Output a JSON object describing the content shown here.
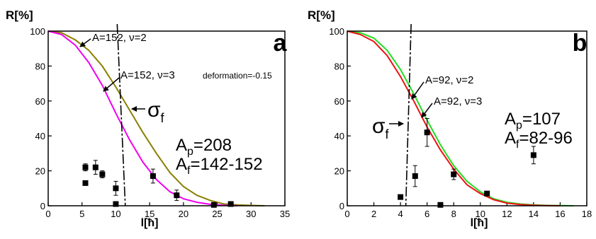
{
  "chart_data": [
    {
      "type": "line",
      "panel_label": "a",
      "ylabel": "R[%]",
      "xlabel": "l[ħ]",
      "xlim": [
        0,
        35
      ],
      "ylim": [
        0,
        100
      ],
      "xticks": [
        0,
        5,
        10,
        15,
        20,
        25,
        30,
        35
      ],
      "yticks": [
        0,
        20,
        40,
        60,
        80,
        100
      ],
      "series": [
        {
          "name": "A=152, ν=2",
          "color": "#8a8000",
          "x": [
            0,
            2,
            4,
            6,
            8,
            10,
            12,
            14,
            16,
            18,
            20,
            22,
            24,
            26,
            28,
            30,
            32
          ],
          "y": [
            100,
            99,
            95,
            89,
            80,
            68,
            55,
            42,
            30,
            19,
            11,
            6,
            3,
            1,
            0.5,
            0.2,
            0
          ]
        },
        {
          "name": "A=152, ν=3",
          "color": "#ee00ee",
          "note": "deformation=-0.15",
          "x": [
            0,
            2,
            4,
            6,
            8,
            10,
            12,
            14,
            16,
            18,
            20,
            22,
            24,
            26,
            28
          ],
          "y": [
            100,
            98,
            92,
            82,
            69,
            53,
            38,
            25,
            15,
            8,
            4,
            2,
            0.8,
            0.3,
            0
          ]
        }
      ],
      "points": [
        {
          "x": 5.5,
          "y": 22,
          "err": 2
        },
        {
          "x": 5.5,
          "y": 13,
          "err": 1
        },
        {
          "x": 7,
          "y": 22,
          "err": 4
        },
        {
          "x": 8,
          "y": 18,
          "err": 2
        },
        {
          "x": 10,
          "y": 10,
          "err": 4
        },
        {
          "x": 10,
          "y": 1,
          "err": 0
        },
        {
          "x": 15.5,
          "y": 17,
          "err": 4
        },
        {
          "x": 19,
          "y": 6,
          "err": 3
        },
        {
          "x": 24.5,
          "y": 0.5,
          "err": 0
        },
        {
          "x": 27,
          "y": 1,
          "err": 1
        }
      ],
      "sigma_line": {
        "x_top": 10.2,
        "x_bottom": 11.4
      },
      "sigma_label": {
        "main": "σ",
        "sub": "f"
      },
      "annotations": {
        "a1": "A=152, ν=2",
        "a2": "A=152, ν=3",
        "a2_note": "deformation=-0.15",
        "ap": "A",
        "ap_sub": "p",
        "ap_val": "=208",
        "af": "A",
        "af_sub": "f",
        "af_val": "=142-152"
      }
    },
    {
      "type": "line",
      "panel_label": "b",
      "ylabel": "R[%]",
      "xlabel": "l[ħ]",
      "xlim": [
        0,
        18
      ],
      "ylim": [
        0,
        100
      ],
      "xticks": [
        0,
        2,
        4,
        6,
        8,
        10,
        12,
        14,
        16,
        18
      ],
      "yticks": [
        0,
        20,
        40,
        60,
        80,
        100
      ],
      "series": [
        {
          "name": "A=92, ν=2",
          "color": "#22dd22",
          "x": [
            0,
            1,
            2,
            3,
            4,
            5,
            6,
            7,
            8,
            9,
            10,
            11,
            12,
            13,
            14,
            15,
            16,
            17
          ],
          "y": [
            100,
            99,
            96,
            89,
            78,
            64,
            49,
            35,
            23,
            14,
            8,
            4,
            2,
            1,
            0.5,
            0.2,
            0.1,
            0
          ]
        },
        {
          "name": "A=92, ν=3",
          "color": "#ee1111",
          "x": [
            0,
            1,
            2,
            3,
            4,
            5,
            6,
            7,
            8,
            9,
            10,
            11,
            12,
            13,
            14,
            15,
            16
          ],
          "y": [
            100,
            98,
            94,
            86,
            74,
            60,
            45,
            32,
            21,
            12,
            7,
            3.5,
            1.5,
            0.7,
            0.3,
            0.1,
            0
          ]
        }
      ],
      "points": [
        {
          "x": 4,
          "y": 5,
          "err": 1
        },
        {
          "x": 5.1,
          "y": 17,
          "err": 6
        },
        {
          "x": 6,
          "y": 42,
          "err": 8
        },
        {
          "x": 7,
          "y": 0.5,
          "err": 0
        },
        {
          "x": 8,
          "y": 18,
          "err": 3
        },
        {
          "x": 10.5,
          "y": 7,
          "err": 1
        },
        {
          "x": 14,
          "y": 29,
          "err": 5
        }
      ],
      "sigma_line": {
        "x_top": 4.8,
        "x_bottom": 4.4
      },
      "sigma_label": {
        "main": "σ",
        "sub": "f"
      },
      "annotations": {
        "a1": "A=92, ν=2",
        "a2": "A=92, ν=3",
        "ap": "A",
        "ap_sub": "p",
        "ap_val": "=107",
        "af": "A",
        "af_sub": "f",
        "af_val": "=82-96"
      }
    }
  ]
}
